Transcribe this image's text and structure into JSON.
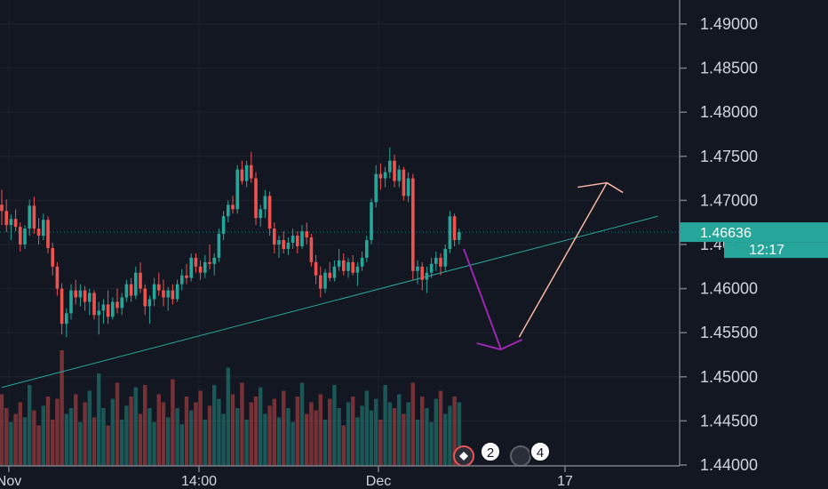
{
  "chart_data": {
    "type": "candlestick",
    "title": "",
    "xlabel": "",
    "ylabel": "",
    "ylim": [
      1.44,
      1.4925
    ],
    "y_ticks": [
      "1.49000",
      "1.48500",
      "1.48000",
      "1.47500",
      "1.47000",
      "1.46500",
      "1.46000",
      "1.45500",
      "1.45000",
      "1.44500",
      "1.44000"
    ],
    "x_ticks": [
      "Nov",
      "14:00",
      "Dec",
      "17"
    ],
    "grid": true,
    "current_price": "1.46636",
    "countdown": "12:17",
    "events": [
      "2",
      "4"
    ],
    "colors": {
      "background": "#131722",
      "up": "#26a69a",
      "down": "#ef5350",
      "grid": "#1e222d",
      "trendline": "#26a69a",
      "down_arrow": "#9c27b0",
      "up_arrow": "#f8b7a4",
      "price_label": "#26a69a"
    },
    "trendline": {
      "from": [
        0,
        1.4488
      ],
      "to": [
        142,
        1.4682
      ]
    },
    "projection": {
      "down": {
        "from": [
          100,
          1.4645
        ],
        "to": [
          108,
          1.4532
        ]
      },
      "up": {
        "from": [
          112,
          1.4545
        ],
        "to": [
          131,
          1.472
        ]
      }
    },
    "ohlc": [
      [
        1.4695,
        1.4712,
        1.4672,
        1.4688
      ],
      [
        1.4688,
        1.4701,
        1.4664,
        1.4672
      ],
      [
        1.4672,
        1.4684,
        1.4655,
        1.4679
      ],
      [
        1.4679,
        1.469,
        1.4665,
        1.467
      ],
      [
        1.467,
        1.4675,
        1.4642,
        1.465
      ],
      [
        1.465,
        1.4672,
        1.4645,
        1.4668
      ],
      [
        1.4668,
        1.4701,
        1.466,
        1.4694
      ],
      [
        1.4694,
        1.4704,
        1.4662,
        1.4668
      ],
      [
        1.4668,
        1.468,
        1.465,
        1.466
      ],
      [
        1.466,
        1.4685,
        1.4655,
        1.4678
      ],
      [
        1.4678,
        1.4682,
        1.464,
        1.4646
      ],
      [
        1.4646,
        1.4652,
        1.4615,
        1.4625
      ],
      [
        1.4625,
        1.463,
        1.4592,
        1.46
      ],
      [
        1.46,
        1.4606,
        1.4548,
        1.456
      ],
      [
        1.456,
        1.4578,
        1.4545,
        1.4572
      ],
      [
        1.4572,
        1.4605,
        1.4565,
        1.4598
      ],
      [
        1.4598,
        1.461,
        1.4582,
        1.459
      ],
      [
        1.459,
        1.4605,
        1.458,
        1.4598
      ],
      [
        1.4598,
        1.4603,
        1.4575,
        1.4585
      ],
      [
        1.4585,
        1.46,
        1.457,
        1.4595
      ],
      [
        1.4595,
        1.4598,
        1.4565,
        1.457
      ],
      [
        1.457,
        1.4585,
        1.4548,
        1.4575
      ],
      [
        1.4575,
        1.4588,
        1.456,
        1.4582
      ],
      [
        1.4582,
        1.4598,
        1.456,
        1.4568
      ],
      [
        1.4568,
        1.459,
        1.4565,
        1.4585
      ],
      [
        1.4585,
        1.46,
        1.4572,
        1.4578
      ],
      [
        1.4578,
        1.4595,
        1.457,
        1.459
      ],
      [
        1.459,
        1.461,
        1.4585,
        1.4605
      ],
      [
        1.4605,
        1.4612,
        1.4585,
        1.4592
      ],
      [
        1.4592,
        1.4625,
        1.4588,
        1.4618
      ],
      [
        1.4618,
        1.463,
        1.4595,
        1.46
      ],
      [
        1.46,
        1.4605,
        1.457,
        1.458
      ],
      [
        1.458,
        1.4592,
        1.456,
        1.4588
      ],
      [
        1.4588,
        1.4612,
        1.458,
        1.4605
      ],
      [
        1.4605,
        1.4618,
        1.4592,
        1.4598
      ],
      [
        1.4598,
        1.461,
        1.458,
        1.459
      ],
      [
        1.459,
        1.4602,
        1.4575,
        1.4598
      ],
      [
        1.4598,
        1.4605,
        1.4582,
        1.4588
      ],
      [
        1.4588,
        1.461,
        1.4585,
        1.4605
      ],
      [
        1.4605,
        1.4622,
        1.4598,
        1.4615
      ],
      [
        1.4615,
        1.4628,
        1.4605,
        1.4612
      ],
      [
        1.4612,
        1.464,
        1.4608,
        1.4635
      ],
      [
        1.4635,
        1.464,
        1.4618,
        1.4625
      ],
      [
        1.4625,
        1.4632,
        1.461,
        1.4618
      ],
      [
        1.4618,
        1.4638,
        1.4612,
        1.463
      ],
      [
        1.463,
        1.465,
        1.4622,
        1.4628
      ],
      [
        1.4628,
        1.464,
        1.4615,
        1.4635
      ],
      [
        1.4635,
        1.4668,
        1.463,
        1.4662
      ],
      [
        1.4662,
        1.4688,
        1.4655,
        1.4682
      ],
      [
        1.4682,
        1.47,
        1.4675,
        1.4695
      ],
      [
        1.4695,
        1.4705,
        1.4685,
        1.469
      ],
      [
        1.469,
        1.474,
        1.4685,
        1.4735
      ],
      [
        1.4735,
        1.4745,
        1.4718,
        1.4722
      ],
      [
        1.4722,
        1.4745,
        1.4715,
        1.474
      ],
      [
        1.474,
        1.4755,
        1.472,
        1.4725
      ],
      [
        1.4725,
        1.4732,
        1.4672,
        1.468
      ],
      [
        1.468,
        1.4695,
        1.467,
        1.469
      ],
      [
        1.469,
        1.4712,
        1.468,
        1.4705
      ],
      [
        1.4705,
        1.471,
        1.466,
        1.4668
      ],
      [
        1.4668,
        1.4675,
        1.464,
        1.465
      ],
      [
        1.465,
        1.466,
        1.4635,
        1.4655
      ],
      [
        1.4655,
        1.4665,
        1.464,
        1.4645
      ],
      [
        1.4645,
        1.4658,
        1.4638,
        1.4652
      ],
      [
        1.4652,
        1.4668,
        1.4645,
        1.466
      ],
      [
        1.466,
        1.4665,
        1.464,
        1.4648
      ],
      [
        1.4648,
        1.4672,
        1.4645,
        1.4665
      ],
      [
        1.4665,
        1.4675,
        1.465,
        1.4658
      ],
      [
        1.4658,
        1.4662,
        1.4625,
        1.463
      ],
      [
        1.463,
        1.4638,
        1.4605,
        1.4615
      ],
      [
        1.4615,
        1.4625,
        1.459,
        1.46
      ],
      [
        1.46,
        1.4622,
        1.4595,
        1.4618
      ],
      [
        1.4618,
        1.463,
        1.4608,
        1.4612
      ],
      [
        1.4612,
        1.4632,
        1.4608,
        1.4625
      ],
      [
        1.4625,
        1.4645,
        1.462,
        1.4632
      ],
      [
        1.4632,
        1.464,
        1.4615,
        1.462
      ],
      [
        1.462,
        1.4635,
        1.4612,
        1.463
      ],
      [
        1.463,
        1.4638,
        1.4615,
        1.4618
      ],
      [
        1.4618,
        1.463,
        1.4603,
        1.4625
      ],
      [
        1.4625,
        1.4642,
        1.462,
        1.4635
      ],
      [
        1.4635,
        1.466,
        1.463,
        1.4655
      ],
      [
        1.4655,
        1.4702,
        1.465,
        1.4698
      ],
      [
        1.4698,
        1.474,
        1.4692,
        1.473
      ],
      [
        1.473,
        1.4742,
        1.4712,
        1.4725
      ],
      [
        1.4725,
        1.4738,
        1.4715,
        1.4732
      ],
      [
        1.4732,
        1.476,
        1.4725,
        1.4745
      ],
      [
        1.4745,
        1.4752,
        1.4715,
        1.4722
      ],
      [
        1.4722,
        1.474,
        1.4715,
        1.4735
      ],
      [
        1.4735,
        1.4738,
        1.47,
        1.4705
      ],
      [
        1.4705,
        1.4732,
        1.4698,
        1.4725
      ],
      [
        1.4725,
        1.473,
        1.461,
        1.462
      ],
      [
        1.462,
        1.4632,
        1.4605,
        1.4625
      ],
      [
        1.4625,
        1.463,
        1.4598,
        1.461
      ],
      [
        1.461,
        1.4625,
        1.4595,
        1.4618
      ],
      [
        1.4618,
        1.4635,
        1.4612,
        1.4628
      ],
      [
        1.4628,
        1.4642,
        1.462,
        1.4635
      ],
      [
        1.4635,
        1.464,
        1.4615,
        1.4625
      ],
      [
        1.4625,
        1.465,
        1.462,
        1.4645
      ],
      [
        1.4645,
        1.4688,
        1.464,
        1.4682
      ],
      [
        1.4682,
        1.4685,
        1.4648,
        1.4655
      ],
      [
        1.4655,
        1.4668,
        1.465,
        1.4664
      ]
    ],
    "volume": [
      0.62,
      0.5,
      0.38,
      0.45,
      0.55,
      0.42,
      0.7,
      0.48,
      0.35,
      0.52,
      0.6,
      0.4,
      0.58,
      1.0,
      0.45,
      0.5,
      0.62,
      0.38,
      0.55,
      0.65,
      0.42,
      0.8,
      0.5,
      0.35,
      0.58,
      0.72,
      0.4,
      0.52,
      0.6,
      0.68,
      0.45,
      0.7,
      0.5,
      0.38,
      0.62,
      0.55,
      0.42,
      0.75,
      0.5,
      0.36,
      0.6,
      0.48,
      0.55,
      0.65,
      0.4,
      0.52,
      0.7,
      0.58,
      0.45,
      0.85,
      0.62,
      0.5,
      0.72,
      0.4,
      0.55,
      0.6,
      0.68,
      0.45,
      0.52,
      0.58,
      0.42,
      0.65,
      0.5,
      0.38,
      0.6,
      0.72,
      0.45,
      0.55,
      0.48,
      0.62,
      0.4,
      0.58,
      0.7,
      0.5,
      0.35,
      0.55,
      0.6,
      0.42,
      0.52,
      0.65,
      0.48,
      0.58,
      0.4,
      0.7,
      0.55,
      0.5,
      0.62,
      0.45,
      0.55,
      0.72,
      0.4,
      0.6,
      0.5,
      0.38,
      0.58,
      0.65,
      0.45,
      0.52,
      0.6,
      0.55
    ]
  }
}
